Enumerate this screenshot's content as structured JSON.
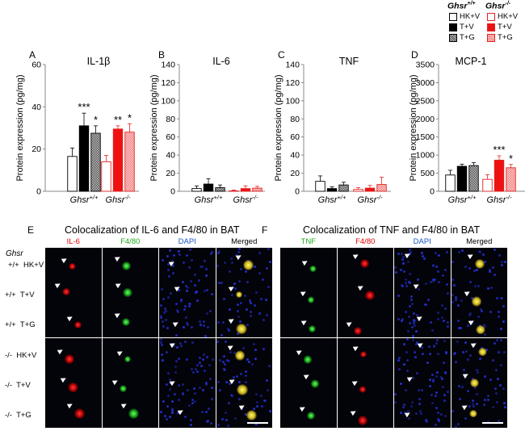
{
  "legend": {
    "groups": [
      {
        "title": "Ghsr",
        "superscript": "+/+",
        "items": [
          "HK+V",
          "T+V",
          "T+G"
        ]
      },
      {
        "title": "Ghsr",
        "superscript": "-/-",
        "items": [
          "HK+V",
          "T+V",
          "T+G"
        ]
      }
    ]
  },
  "colors": {
    "wt_hkv_fill": "#ffffff",
    "wt_tv_fill": "#000000",
    "wt_tg_fill": "#999999",
    "ko_hkv_fill": "#ffffff",
    "ko_tv_fill": "#ee1111",
    "ko_tg_fill": "#f6a8a8",
    "wt_edge": "#000000",
    "ko_edge": "#e42222",
    "red_channel": "#e00000",
    "green_channel": "#1fa81f",
    "blue_channel": "#1a55c8"
  },
  "chart_data": [
    {
      "panel": "A",
      "type": "bar",
      "title": "IL-1β",
      "ylabel": "Protein expression (pg/mg)",
      "ylim": [
        0,
        60
      ],
      "yticks": [
        0,
        20,
        40,
        60
      ],
      "categories": [
        {
          "name": "Ghsr",
          "sup": "+/+"
        },
        {
          "name": "Ghsr",
          "sup": "-/-"
        }
      ],
      "series": [
        {
          "name": "HK+V",
          "values": [
            16.5,
            14
          ]
        },
        {
          "name": "T+V",
          "values": [
            31,
            29.5
          ]
        },
        {
          "name": "T+G",
          "values": [
            27.5,
            28
          ]
        }
      ],
      "errors": [
        [
          4,
          3
        ],
        [
          6,
          1.5
        ],
        [
          3.5,
          4
        ]
      ],
      "annotations": [
        {
          "category": 0,
          "series": 1,
          "text": "***"
        },
        {
          "category": 0,
          "series": 2,
          "text": "*"
        },
        {
          "category": 1,
          "series": 1,
          "text": "**"
        },
        {
          "category": 1,
          "series": 2,
          "text": "*"
        }
      ]
    },
    {
      "panel": "B",
      "type": "bar",
      "title": "IL-6",
      "ylabel": "Protein expression (pg/mg)",
      "ylim": [
        0,
        140
      ],
      "yticks": [
        0,
        20,
        40,
        60,
        80,
        100,
        120,
        140
      ],
      "categories": [
        {
          "name": "Ghsr",
          "sup": "+/+"
        },
        {
          "name": "Ghsr",
          "sup": "-/-"
        }
      ],
      "series": [
        {
          "name": "HK+V",
          "values": [
            3,
            0.5
          ]
        },
        {
          "name": "T+V",
          "values": [
            8,
            3
          ]
        },
        {
          "name": "T+G",
          "values": [
            4,
            3.5
          ]
        }
      ],
      "errors": [
        [
          3,
          1
        ],
        [
          6,
          3
        ],
        [
          3,
          2
        ]
      ],
      "annotations": []
    },
    {
      "panel": "C",
      "type": "bar",
      "title": "TNF",
      "ylabel": "Protein expression (pg/mg)",
      "ylim": [
        0,
        140
      ],
      "yticks": [
        0,
        20,
        40,
        60,
        80,
        100,
        120,
        140
      ],
      "categories": [
        {
          "name": "Ghsr",
          "sup": "+/+"
        },
        {
          "name": "Ghsr",
          "sup": "-/-"
        }
      ],
      "series": [
        {
          "name": "HK+V",
          "values": [
            11,
            2
          ]
        },
        {
          "name": "T+V",
          "values": [
            3,
            3.5
          ]
        },
        {
          "name": "T+G",
          "values": [
            7,
            7.5
          ]
        }
      ],
      "errors": [
        [
          6,
          2
        ],
        [
          2,
          3
        ],
        [
          3,
          8
        ]
      ],
      "annotations": []
    },
    {
      "panel": "D",
      "type": "bar",
      "title": "MCP-1",
      "ylabel": "Protein expression (pg/mg)",
      "ylim": [
        0,
        3500
      ],
      "yticks": [
        0,
        500,
        1000,
        1500,
        2000,
        2500,
        3000,
        3500
      ],
      "categories": [
        {
          "name": "Ghsr",
          "sup": "+/+"
        },
        {
          "name": "Ghsr",
          "sup": "-/-"
        }
      ],
      "series": [
        {
          "name": "HK+V",
          "values": [
            450,
            330
          ]
        },
        {
          "name": "T+V",
          "values": [
            690,
            860
          ]
        },
        {
          "name": "T+G",
          "values": [
            710,
            650
          ]
        }
      ],
      "errors": [
        [
          130,
          130
        ],
        [
          60,
          120
        ],
        [
          80,
          90
        ]
      ],
      "annotations": [
        {
          "category": 1,
          "series": 1,
          "text": "***"
        },
        {
          "category": 1,
          "series": 2,
          "text": "*"
        }
      ]
    }
  ],
  "micrographs": {
    "genotype_label": "Ghsr",
    "row_labels": [
      "+/+  HK+V",
      "+/+  T+V",
      "+/+  T+G",
      "-/-  HK+V",
      "-/-  T+V",
      "-/-  T+G"
    ],
    "panels": [
      {
        "letter": "E",
        "title": "Colocalization of IL-6 and F4/80 in BAT",
        "columns": [
          {
            "label": "IL-6",
            "color": "#e00000"
          },
          {
            "label": "F4/80",
            "color": "#1fa81f"
          },
          {
            "label": "DAPI",
            "color": "#1a55c8"
          },
          {
            "label": "Merged",
            "color": "#000000"
          }
        ]
      },
      {
        "letter": "F",
        "title": "Colocalization of TNF and F4/80 in BAT",
        "columns": [
          {
            "label": "TNF",
            "color": "#1fa81f"
          },
          {
            "label": "F4/80",
            "color": "#e00000"
          },
          {
            "label": "DAPI",
            "color": "#1a55c8"
          },
          {
            "label": "Merged",
            "color": "#000000"
          }
        ]
      }
    ]
  }
}
